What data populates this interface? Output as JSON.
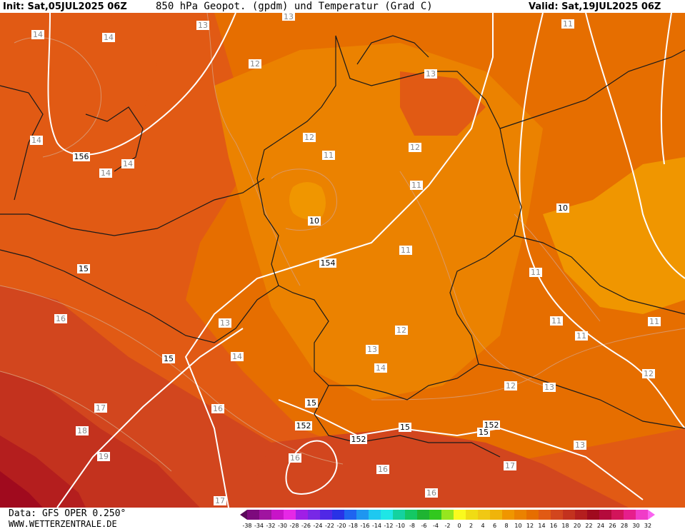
{
  "header": {
    "init": "Init: Sat,05JUL2025 06Z",
    "title": "850 hPa Geopot. (gpdm) und Temperatur (Grad C)",
    "valid": "Valid: Sat,19JUL2025 06Z"
  },
  "footer": {
    "data_source": "Data: GFS OPER 0.250°",
    "website": "WWW.WETTERZENTRALE.DE"
  },
  "legend": {
    "ticks": [
      "-38",
      "-34",
      "-32",
      "-30",
      "-28",
      "-26",
      "-24",
      "-22",
      "-20",
      "-18",
      "-16",
      "-14",
      "-12",
      "-10",
      "-8",
      "-6",
      "-4",
      "-2",
      "0",
      "2",
      "4",
      "6",
      "8",
      "10",
      "12",
      "14",
      "16",
      "18",
      "20",
      "22",
      "24",
      "26",
      "28",
      "30",
      "32"
    ],
    "colors": [
      "#5a0a5a",
      "#7d0a7d",
      "#a014a0",
      "#c814c8",
      "#e628e6",
      "#a01ee6",
      "#7828e6",
      "#5028e6",
      "#2832e6",
      "#1e64f0",
      "#1e96f0",
      "#1ec8f0",
      "#1ee6e6",
      "#14d2a0",
      "#14c864",
      "#1eb432",
      "#32c81e",
      "#96e61e",
      "#fafa1e",
      "#f0dc14",
      "#f0c814",
      "#f0b40a",
      "#f09600",
      "#eb8200",
      "#e66e00",
      "#e15a14",
      "#d2461e",
      "#c3321e",
      "#b41e1e",
      "#a00a1e",
      "#b40a3c",
      "#d2145a",
      "#e61e8c",
      "#f03cc8",
      "#fa64f0"
    ]
  },
  "temperature_labels": [
    {
      "text": "14"
    },
    {
      "text": "14"
    },
    {
      "text": "14"
    },
    {
      "text": "14"
    },
    {
      "text": "14"
    },
    {
      "text": "13"
    },
    {
      "text": "12"
    },
    {
      "text": "15"
    },
    {
      "text": "16"
    },
    {
      "text": "13"
    },
    {
      "text": "14"
    },
    {
      "text": "17"
    },
    {
      "text": "18"
    },
    {
      "text": "19"
    },
    {
      "text": "16"
    },
    {
      "text": "17"
    },
    {
      "text": "12"
    },
    {
      "text": "11"
    },
    {
      "text": "10"
    },
    {
      "text": "13"
    },
    {
      "text": "12"
    },
    {
      "text": "11"
    },
    {
      "text": "11"
    },
    {
      "text": "12"
    },
    {
      "text": "13"
    },
    {
      "text": "14"
    },
    {
      "text": "16"
    },
    {
      "text": "16"
    },
    {
      "text": "16"
    },
    {
      "text": "11"
    },
    {
      "text": "12"
    },
    {
      "text": "13"
    },
    {
      "text": "17"
    },
    {
      "text": "13"
    },
    {
      "text": "11"
    },
    {
      "text": "11"
    },
    {
      "text": "11"
    },
    {
      "text": "11"
    },
    {
      "text": "12"
    },
    {
      "text": "13"
    }
  ],
  "geopotential_labels": [
    {
      "text": "156"
    },
    {
      "text": "154"
    },
    {
      "text": "152"
    },
    {
      "text": "152"
    },
    {
      "text": "152"
    },
    {
      "text": "15"
    },
    {
      "text": "15"
    },
    {
      "text": "15"
    },
    {
      "text": "15"
    },
    {
      "text": "10"
    }
  ]
}
